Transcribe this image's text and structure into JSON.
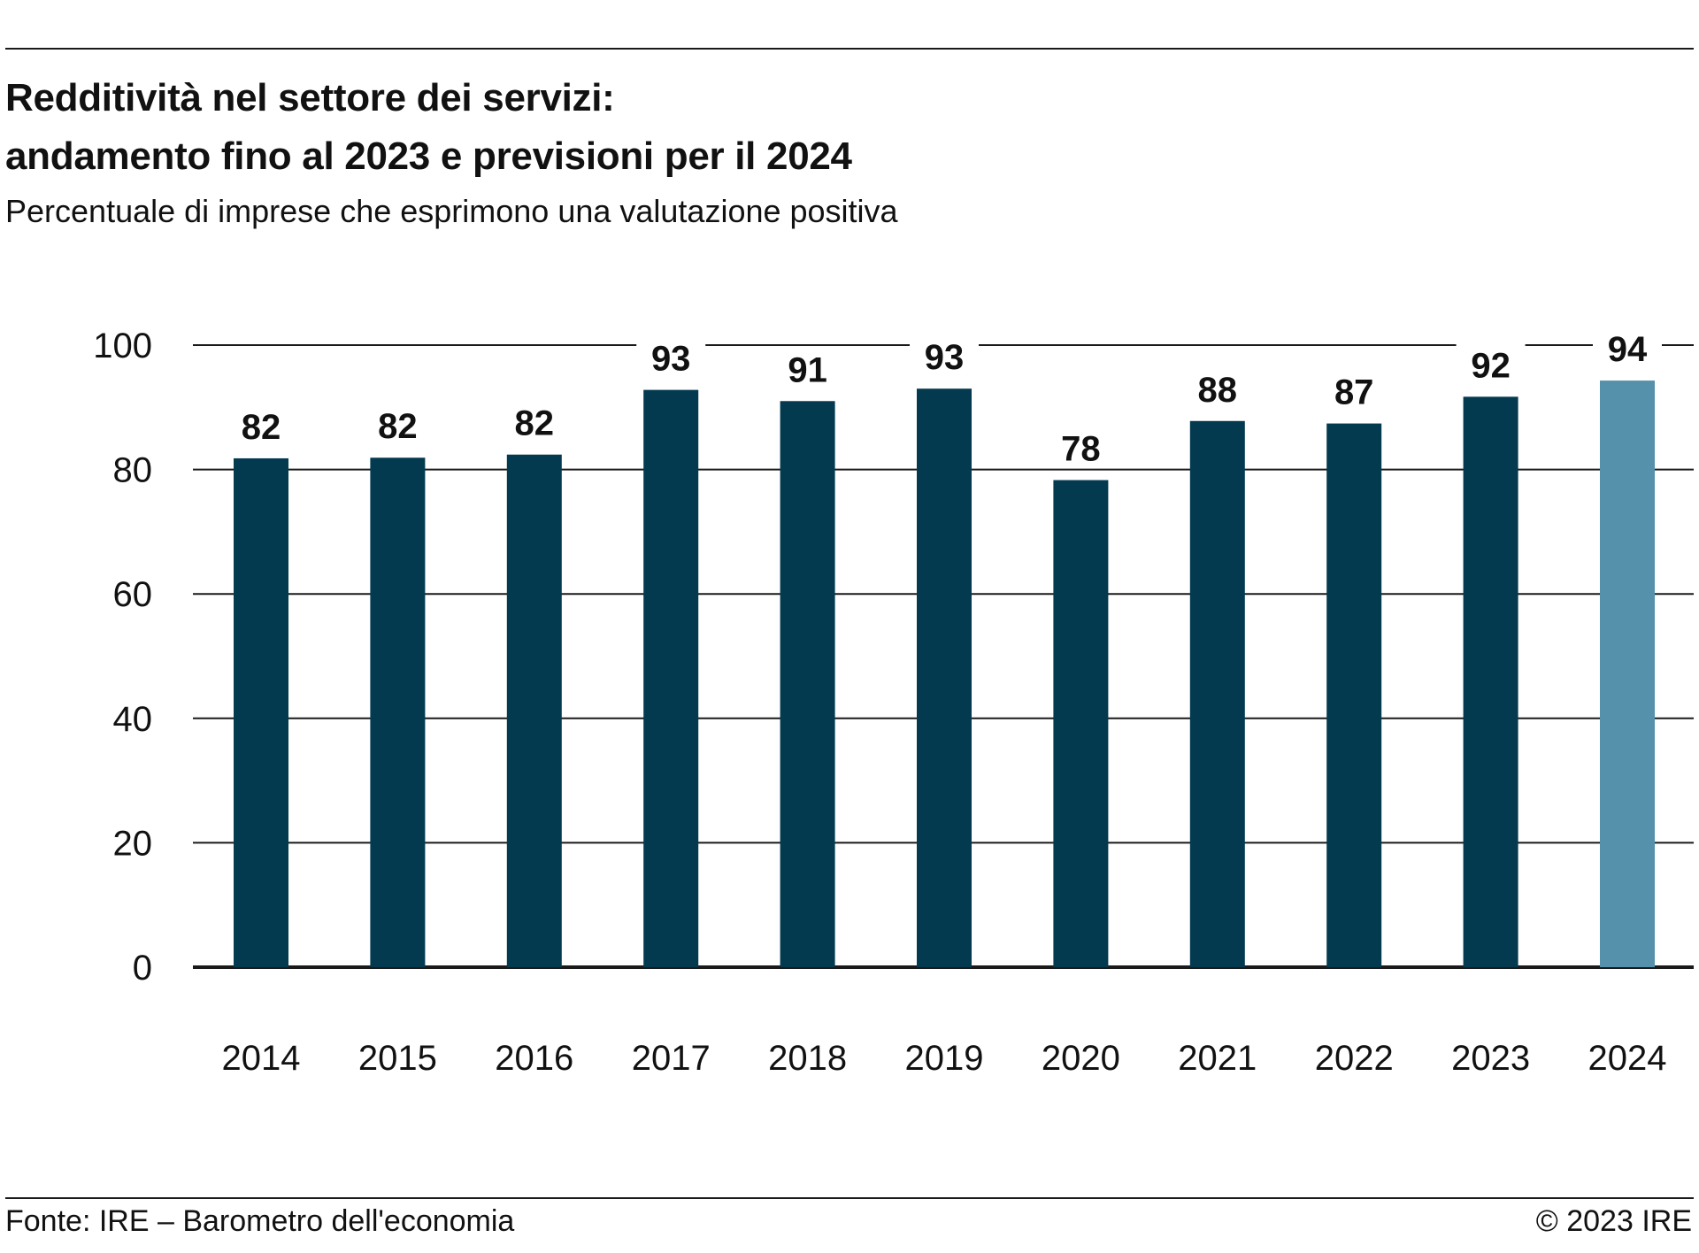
{
  "title_lines": [
    "Redditività nel settore dei servizi:",
    "andamento fino al 2023 e previsioni per il 2024"
  ],
  "subtitle": "Percentuale di imprese che esprimono una valutazione positiva",
  "source": "Fonte: IRE – Barometro dell'economia",
  "copyright": "© 2023 IRE",
  "colors": {
    "actual": "#033a50",
    "forecast": "#5591ab",
    "grid": "#1a1a1a"
  },
  "chart_data": {
    "type": "bar",
    "title": "Redditività nel settore dei servizi: andamento fino al 2023 e previsioni per il 2024",
    "subtitle": "Percentuale di imprese che esprimono una valutazione positiva",
    "categories": [
      "2014",
      "2015",
      "2016",
      "2017",
      "2018",
      "2019",
      "2020",
      "2021",
      "2022",
      "2023",
      "2024"
    ],
    "values": [
      82,
      82,
      82,
      93,
      91,
      93,
      78,
      88,
      87,
      92,
      94
    ],
    "plotted_values": [
      81.8,
      81.9,
      82.4,
      92.8,
      91.0,
      93.0,
      78.3,
      87.8,
      87.4,
      91.7,
      94.3
    ],
    "data_labels": [
      "82",
      "82",
      "82",
      "93",
      "91",
      "93",
      "78",
      "88",
      "87",
      "92",
      "94"
    ],
    "forecast_categories": [
      "2024"
    ],
    "xlabel": "",
    "ylabel": "",
    "ylim": [
      0,
      100
    ],
    "yticks": [
      0,
      20,
      40,
      60,
      80,
      100
    ],
    "grid": true,
    "legend": "none"
  }
}
